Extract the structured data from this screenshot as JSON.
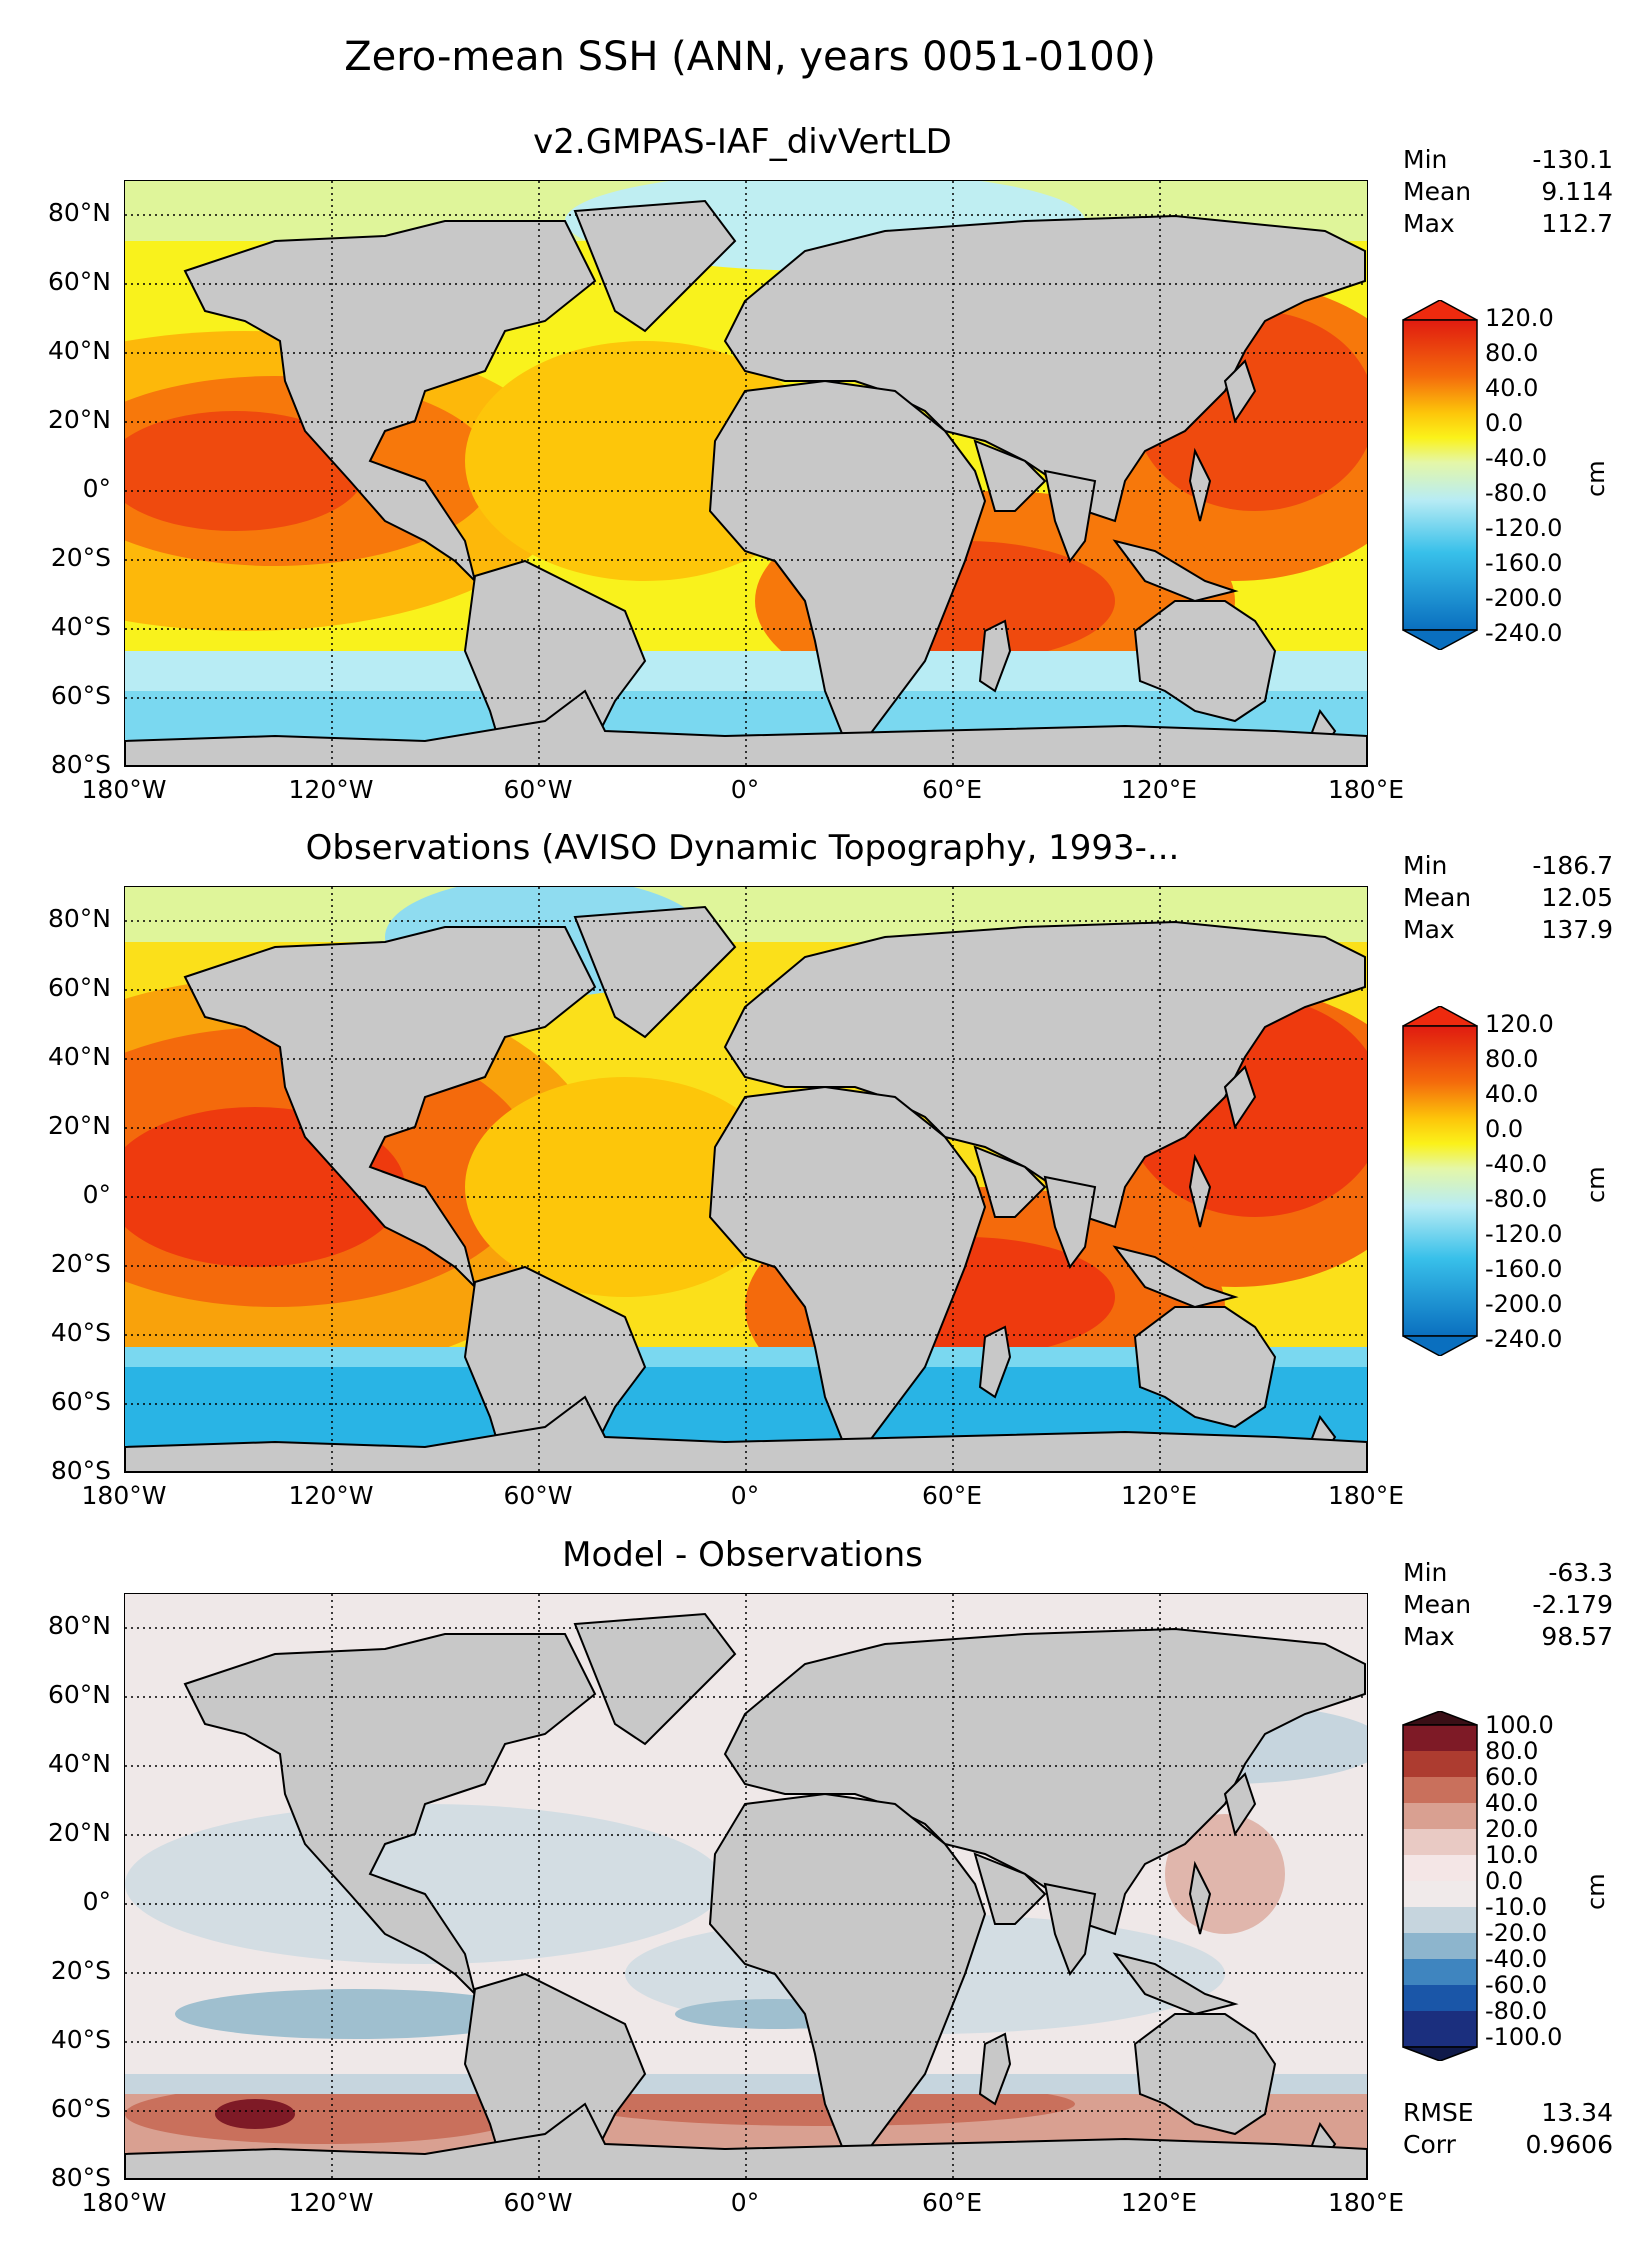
{
  "figure": {
    "suptitle": "Zero-mean SSH (ANN, years 0051-0100)"
  },
  "axes": {
    "lat_labels": [
      "80°N",
      "60°N",
      "40°N",
      "20°N",
      "0°",
      "20°S",
      "40°S",
      "60°S",
      "80°S"
    ],
    "lat_values": [
      80,
      60,
      40,
      20,
      0,
      -20,
      -40,
      -60,
      -80
    ],
    "lon_labels": [
      "180°W",
      "120°W",
      "60°W",
      "0°",
      "60°E",
      "120°E",
      "180°E"
    ],
    "lon_values": [
      -180,
      -120,
      -60,
      0,
      60,
      120,
      180
    ],
    "lat_range": [
      -85,
      85
    ],
    "lon_range": [
      -180,
      180
    ],
    "grid": "dotted"
  },
  "panels": [
    {
      "title": "v2.GMPAS-IAF_divVertLD",
      "stats": {
        "min_label": "Min",
        "min": "-130.1",
        "mean_label": "Mean",
        "mean": "9.114",
        "max_label": "Max",
        "max": "112.7"
      },
      "colorbar": {
        "unit": "cm",
        "ticks": [
          "120.0",
          "80.0",
          "40.0",
          "0.0",
          "-40.0",
          "-80.0",
          "-120.0",
          "-160.0",
          "-200.0",
          "-240.0"
        ],
        "colors": [
          "#0a6fbf",
          "#1aa0dd",
          "#38c0ea",
          "#7ad8f0",
          "#b8ecf4",
          "#e4f7a8",
          "#fbf21a",
          "#fdc60a",
          "#fb9a0a",
          "#f46a0c",
          "#ee3a0e",
          "#e01b10"
        ]
      },
      "extra": []
    },
    {
      "title": "Observations (AVISO Dynamic Topography, 1993-...",
      "stats": {
        "min_label": "Min",
        "min": "-186.7",
        "mean_label": "Mean",
        "mean": "12.05",
        "max_label": "Max",
        "max": "137.9"
      },
      "colorbar": {
        "unit": "cm",
        "ticks": [
          "120.0",
          "80.0",
          "40.0",
          "0.0",
          "-40.0",
          "-80.0",
          "-120.0",
          "-160.0",
          "-200.0",
          "-240.0"
        ],
        "colors": [
          "#0a6fbf",
          "#1aa0dd",
          "#38c0ea",
          "#7ad8f0",
          "#b8ecf4",
          "#e4f7a8",
          "#fbf21a",
          "#fdc60a",
          "#fb9a0a",
          "#f46a0c",
          "#ee3a0e",
          "#e01b10"
        ]
      },
      "extra": []
    },
    {
      "title": "Model - Observations",
      "stats": {
        "min_label": "Min",
        "min": "-63.3",
        "mean_label": "Mean",
        "mean": "-2.179",
        "max_label": "Max",
        "max": "98.57"
      },
      "colorbar": {
        "unit": "cm",
        "ticks": [
          "100.0",
          "80.0",
          "60.0",
          "40.0",
          "20.0",
          "10.0",
          "0.0",
          "-10.0",
          "-20.0",
          "-40.0",
          "-60.0",
          "-80.0",
          "-100.0"
        ],
        "colors": [
          "#1b2f7e",
          "#1a56a8",
          "#3f85bf",
          "#8db5cd",
          "#c6d5de",
          "#f0eaea",
          "#f4e6e6",
          "#e9cac4",
          "#d9a091",
          "#c9705c",
          "#ad3c30",
          "#7e1a26"
        ]
      },
      "extra": [
        {
          "label": "RMSE",
          "value": "13.34"
        },
        {
          "label": "Corr",
          "value": "0.9606"
        }
      ]
    }
  ],
  "colors": {
    "land": "#c8c8c8",
    "coast": "#000000"
  }
}
